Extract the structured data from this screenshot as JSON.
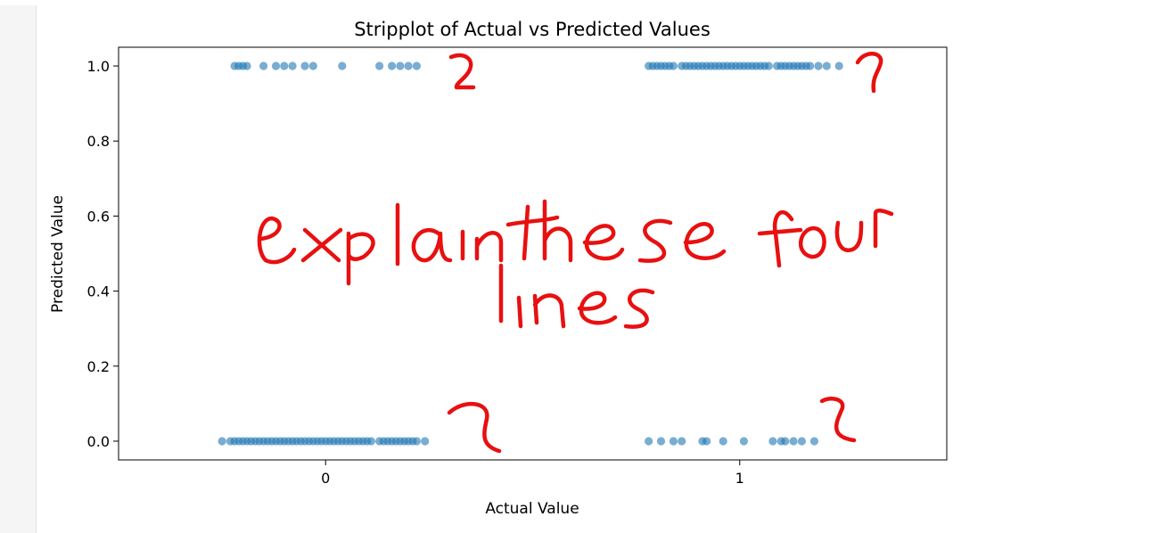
{
  "chart_data": {
    "type": "scatter",
    "title": "Stripplot of Actual vs Predicted Values",
    "xlabel": "Actual Value",
    "ylabel": "Predicted Value",
    "x_categories": [
      "0",
      "1"
    ],
    "xlim": [
      -0.5,
      1.5
    ],
    "ylim": [
      -0.05,
      1.05
    ],
    "yticks": [
      "0.0",
      "0.2",
      "0.4",
      "0.6",
      "0.8",
      "1.0"
    ],
    "grid": false,
    "point_color": "#1f77b4",
    "point_alpha": 0.6,
    "groups": [
      {
        "actual": 0,
        "predicted": 1.0,
        "x": [
          -0.22,
          -0.21,
          -0.2,
          -0.19,
          -0.15,
          -0.12,
          -0.1,
          -0.08,
          -0.05,
          -0.03,
          0.04,
          0.13,
          0.16,
          0.18,
          0.2,
          0.22
        ]
      },
      {
        "actual": 1,
        "predicted": 1.0,
        "x": [
          0.78,
          0.79,
          0.8,
          0.81,
          0.82,
          0.83,
          0.84,
          0.86,
          0.87,
          0.88,
          0.89,
          0.9,
          0.91,
          0.92,
          0.93,
          0.94,
          0.95,
          0.96,
          0.97,
          0.98,
          0.99,
          1.0,
          1.01,
          1.02,
          1.03,
          1.04,
          1.05,
          1.06,
          1.07,
          1.09,
          1.1,
          1.11,
          1.12,
          1.13,
          1.14,
          1.15,
          1.16,
          1.17,
          1.19,
          1.21,
          1.24
        ]
      },
      {
        "actual": 0,
        "predicted": 0.0,
        "x": [
          -0.25,
          -0.23,
          -0.22,
          -0.21,
          -0.2,
          -0.19,
          -0.18,
          -0.17,
          -0.16,
          -0.15,
          -0.14,
          -0.13,
          -0.12,
          -0.11,
          -0.1,
          -0.09,
          -0.08,
          -0.07,
          -0.06,
          -0.05,
          -0.04,
          -0.03,
          -0.02,
          -0.01,
          0.0,
          0.01,
          0.02,
          0.03,
          0.04,
          0.05,
          0.06,
          0.07,
          0.08,
          0.09,
          0.1,
          0.11,
          0.13,
          0.14,
          0.15,
          0.16,
          0.17,
          0.18,
          0.19,
          0.2,
          0.21,
          0.22,
          0.24
        ]
      },
      {
        "actual": 1,
        "predicted": 0.0,
        "x": [
          0.78,
          0.81,
          0.84,
          0.86,
          0.91,
          0.92,
          0.96,
          1.01,
          1.08,
          1.1,
          1.11,
          1.13,
          1.15,
          1.18
        ]
      }
    ]
  },
  "handwriting": {
    "text": "explain these four lines",
    "color": "#e81010"
  }
}
